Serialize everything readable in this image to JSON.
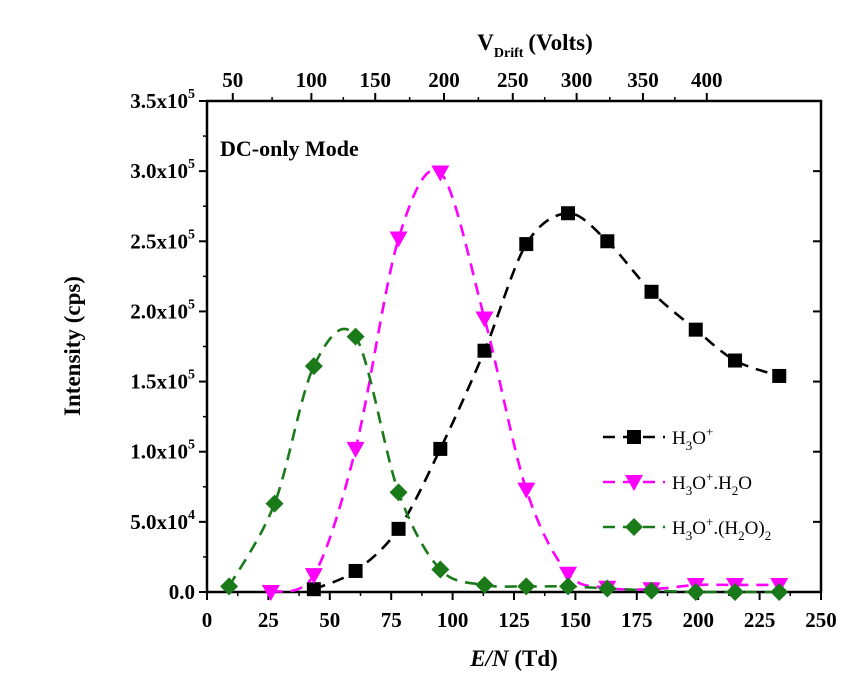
{
  "chart_data": {
    "type": "line",
    "annotation": "DC-only Mode",
    "x_axis": {
      "label_italic": "E/N",
      "label_unit": "(Td)",
      "ticks": [
        "0",
        "25",
        "50",
        "75",
        "100",
        "125",
        "150",
        "175",
        "200",
        "225",
        "250"
      ],
      "range": [
        0,
        250
      ]
    },
    "top_axis": {
      "label_main": "V",
      "label_sub": "Drift",
      "label_unit": "(Volts)",
      "ticks": [
        "50",
        "100",
        "150",
        "200",
        "250",
        "300",
        "350",
        "400"
      ],
      "tick_positions_en": [
        10.5,
        42.5,
        68.5,
        96.5,
        124.5,
        150.5,
        177.5,
        203.5
      ]
    },
    "y_axis": {
      "label": "Intensity (cps)",
      "ticks": [
        {
          "mantissa": "0.0",
          "exp": ""
        },
        {
          "mantissa": "5.0x10",
          "exp": "4"
        },
        {
          "mantissa": "1.0x10",
          "exp": "5"
        },
        {
          "mantissa": "1.5x10",
          "exp": "5"
        },
        {
          "mantissa": "2.0x10",
          "exp": "5"
        },
        {
          "mantissa": "2.5x10",
          "exp": "5"
        },
        {
          "mantissa": "3.0x10",
          "exp": "5"
        },
        {
          "mantissa": "3.5x10",
          "exp": "5"
        }
      ],
      "range": [
        0,
        350000
      ]
    },
    "legend_position": "right",
    "series": [
      {
        "name": "H3O+",
        "color": "#000000",
        "marker": "square",
        "x": [
          43.5,
          60.5,
          78,
          95,
          113,
          130,
          147,
          163,
          181,
          199,
          215,
          233
        ],
        "y": [
          2000,
          15000,
          45000,
          102000,
          172000,
          248000,
          270000,
          250000,
          214000,
          187000,
          165000,
          154000
        ]
      },
      {
        "name": "H3O+.H2O",
        "color": "#ff00ff",
        "marker": "triangle-down",
        "x": [
          26,
          43.5,
          60.5,
          78,
          95,
          113,
          130,
          147,
          163,
          181,
          199,
          215,
          233
        ],
        "y": [
          0,
          12000,
          102000,
          252000,
          299000,
          195000,
          73000,
          13000,
          3000,
          2000,
          5000,
          5000,
          5000
        ]
      },
      {
        "name": "H3O+.(H2O)2",
        "color": "#1a7a1a",
        "marker": "diamond",
        "x": [
          9,
          27.5,
          43.5,
          60.5,
          78,
          95,
          113,
          130,
          147,
          163,
          181,
          199,
          215,
          233
        ],
        "y": [
          4000,
          63000,
          161000,
          182000,
          71000,
          16000,
          5000,
          4000,
          4000,
          2500,
          1000,
          0,
          0,
          0
        ]
      }
    ]
  }
}
